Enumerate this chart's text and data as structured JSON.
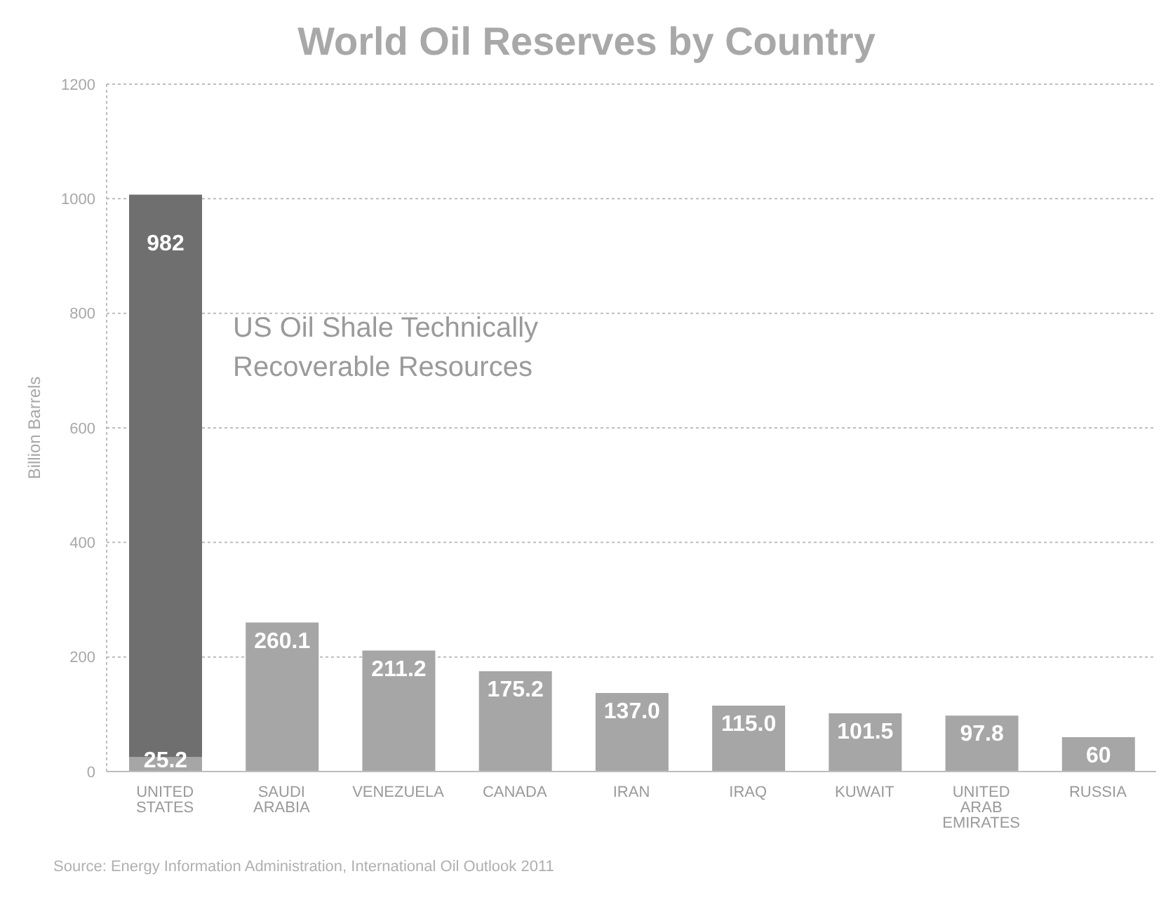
{
  "chart_data": {
    "type": "bar",
    "title": "World Oil Reserves by Country",
    "ylabel": "Billion Barrels",
    "categories": [
      "UNITED STATES",
      "SAUDI ARABIA",
      "VENEZUELA",
      "CANADA",
      "IRAN",
      "IRAQ",
      "KUWAIT",
      "UNITED ARAB EMIRATES",
      "RUSSIA"
    ],
    "stacked": true,
    "series": [
      {
        "color": "#a6a6a6",
        "values": [
          25.2,
          260.1,
          211.2,
          175.2,
          137.0,
          115.0,
          101.5,
          97.8,
          60.0
        ],
        "value_labels": [
          "25.2",
          "260.1",
          "211.2",
          "175.2",
          "137.0",
          "115.0",
          "101.5",
          "97.8",
          "60"
        ]
      },
      {
        "color": "#6f6f6f",
        "values": [
          982,
          null,
          null,
          null,
          null,
          null,
          null,
          null,
          null
        ],
        "value_labels": [
          "982",
          null,
          null,
          null,
          null,
          null,
          null,
          null,
          null
        ]
      }
    ],
    "ylim": [
      0,
      1200
    ],
    "yticks": [
      0,
      200,
      400,
      600,
      800,
      1000,
      1200
    ],
    "grid": "y",
    "legend": false,
    "annotations": [
      "US Oil Shale Technically Recoverable Resources",
      "Source: Energy Information Administration, International Oil Outlook 2011"
    ]
  }
}
